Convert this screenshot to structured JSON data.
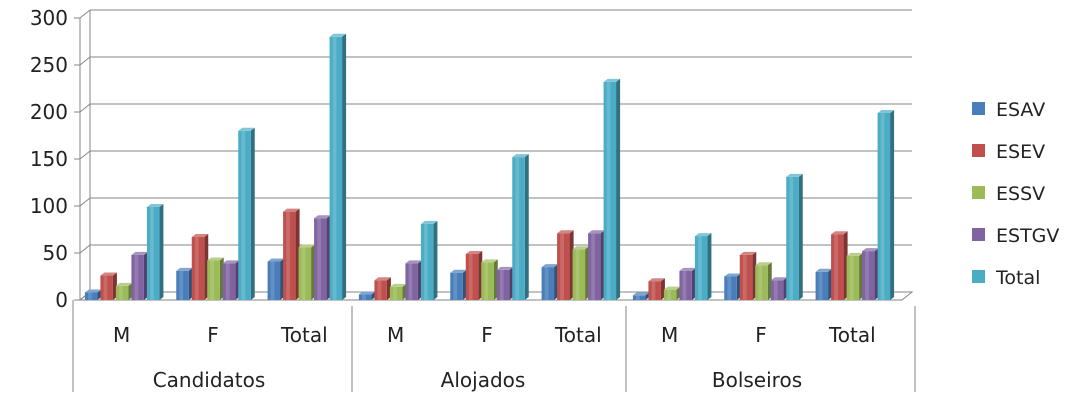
{
  "chart_data": {
    "type": "bar",
    "style": "3d-clustered-column",
    "groups": [
      {
        "label": "Candidatos",
        "categories": [
          "M",
          "F",
          "Total"
        ]
      },
      {
        "label": "Alojados",
        "categories": [
          "M",
          "F",
          "Total"
        ]
      },
      {
        "label": "Bolseiros",
        "categories": [
          "M",
          "F",
          "Total"
        ]
      }
    ],
    "series": [
      {
        "name": "ESAV",
        "color": "#4A7EBB",
        "values": [
          8,
          31,
          41,
          6,
          29,
          35,
          5,
          25,
          30
        ]
      },
      {
        "name": "ESEV",
        "color": "#C0504D",
        "values": [
          26,
          67,
          94,
          21,
          49,
          71,
          20,
          48,
          70
        ]
      },
      {
        "name": "ESSV",
        "color": "#9BBB59",
        "values": [
          15,
          42,
          56,
          14,
          40,
          54,
          11,
          37,
          47
        ]
      },
      {
        "name": "ESTGV",
        "color": "#8064A2",
        "values": [
          48,
          39,
          87,
          39,
          32,
          71,
          31,
          21,
          52
        ]
      },
      {
        "name": "Total",
        "color": "#4BACC6",
        "values": [
          99,
          180,
          280,
          81,
          152,
          232,
          68,
          131,
          199
        ]
      }
    ],
    "ylim": [
      0,
      300
    ],
    "yticks": [
      0,
      50,
      100,
      150,
      200,
      250,
      300
    ],
    "grid": true,
    "legend": "right"
  }
}
